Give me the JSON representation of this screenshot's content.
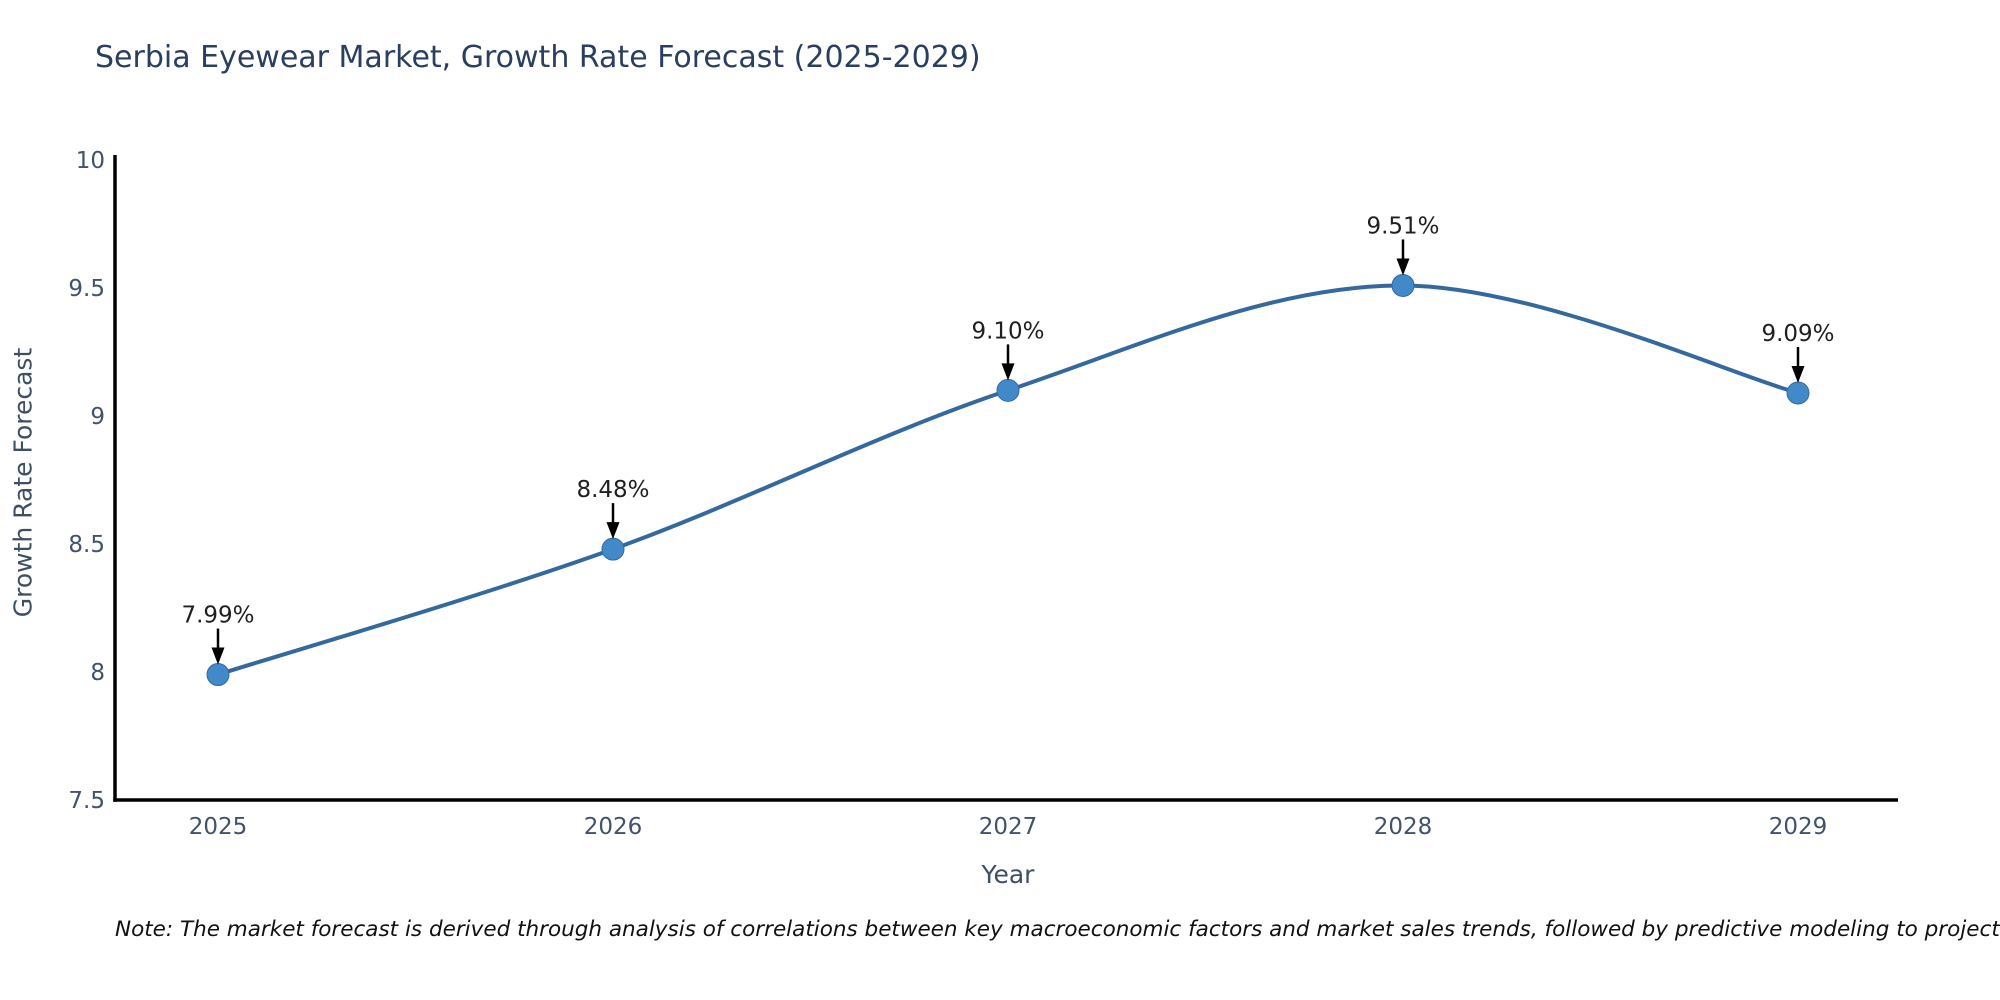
{
  "title": "Serbia Eyewear Market, Growth Rate Forecast (2025-2029)",
  "note": "Note: The market forecast is derived through analysis of correlations between key macroeconomic factors and market sales trends, followed by predictive modeling to project future sales",
  "chart_data": {
    "type": "line",
    "title": "Serbia Eyewear Market, Growth Rate Forecast (2025-2029)",
    "xlabel": "Year",
    "ylabel": "Growth Rate Forecast",
    "categories": [
      "2025",
      "2026",
      "2027",
      "2028",
      "2029"
    ],
    "series": [
      {
        "name": "Growth Rate Forecast",
        "values": [
          7.99,
          8.48,
          9.1,
          9.51,
          9.09
        ],
        "point_labels": [
          "7.99%",
          "8.48%",
          "9.10%",
          "9.51%",
          "9.09%"
        ]
      }
    ],
    "ylim": [
      7.5,
      10
    ],
    "ytick_labels": [
      "7.5",
      "8",
      "8.5",
      "9",
      "9.5",
      "10"
    ],
    "grid": false,
    "legend": "none",
    "line_style": "smooth-spline",
    "marker": "circle",
    "annotations": "value labels with black arrows pointing to each marker",
    "colors": {
      "line": "#35699e",
      "marker": "#4289c9",
      "axis": "#000000",
      "tick_label": "#42526b",
      "axis_title": "#3d4f63",
      "chart_title": "#2a3f5f",
      "annotation_text": "#1f1f1f",
      "arrow": "#000000",
      "background": "#ffffff"
    }
  }
}
